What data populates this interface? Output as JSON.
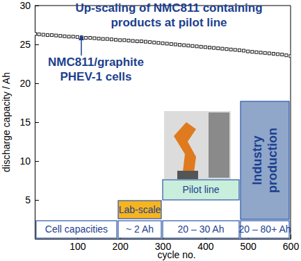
{
  "chart_data": {
    "type": "scatter",
    "title": "Up-scaling of NMC811 containing products at pilot line",
    "x_label": "cycle no.",
    "y_label": "discharge capacity / Ah",
    "xlim": [
      0,
      600
    ],
    "xticks": [
      100,
      200,
      300,
      400,
      500,
      600
    ],
    "ylim": [
      0,
      30
    ],
    "yticks": [
      5,
      10,
      15,
      20,
      25,
      30
    ],
    "grid": false,
    "marker": "square",
    "color": "#1a1a1a",
    "x": [
      1,
      10,
      20,
      30,
      40,
      50,
      60,
      70,
      80,
      90,
      100,
      110,
      120,
      130,
      140,
      150,
      160,
      170,
      180,
      190,
      200,
      210,
      220,
      230,
      240,
      250,
      260,
      270,
      280,
      290,
      300,
      310,
      320,
      330,
      340,
      350,
      360,
      370,
      380,
      390,
      400,
      410,
      420,
      430,
      440,
      450,
      460,
      470,
      480,
      490,
      500,
      510,
      520,
      530,
      540,
      550,
      560,
      570,
      580,
      590,
      600
    ],
    "values": [
      26.35,
      26.3,
      26.25,
      26.2,
      26.2,
      26.15,
      26.1,
      26.05,
      26.0,
      26.0,
      25.95,
      25.9,
      25.85,
      25.85,
      25.8,
      25.75,
      25.7,
      25.7,
      25.65,
      25.6,
      25.55,
      25.55,
      25.5,
      25.45,
      25.4,
      25.4,
      25.35,
      25.3,
      25.25,
      25.2,
      25.15,
      25.1,
      25.05,
      25.0,
      24.95,
      24.9,
      24.85,
      24.8,
      24.75,
      24.7,
      24.65,
      24.6,
      24.55,
      24.5,
      24.45,
      24.4,
      24.35,
      24.3,
      24.25,
      24.2,
      24.1,
      24.05,
      24.0,
      23.95,
      23.9,
      23.85,
      23.8,
      23.75,
      23.7,
      23.6,
      23.5
    ],
    "annotations": [
      "NMC811/graphite PHEV-1 cells"
    ],
    "stage_header": "Cell capacities",
    "stages": [
      {
        "name": "Lab-scale",
        "capacity": "~ 2 Ah",
        "color": "#f6b420"
      },
      {
        "name": "Pilot line",
        "capacity": "20 – 30 Ah",
        "color": "#c9eedb"
      },
      {
        "name": "Industry production",
        "capacity": "20 – 80+ Ah",
        "color": "#90a7ca"
      }
    ]
  }
}
